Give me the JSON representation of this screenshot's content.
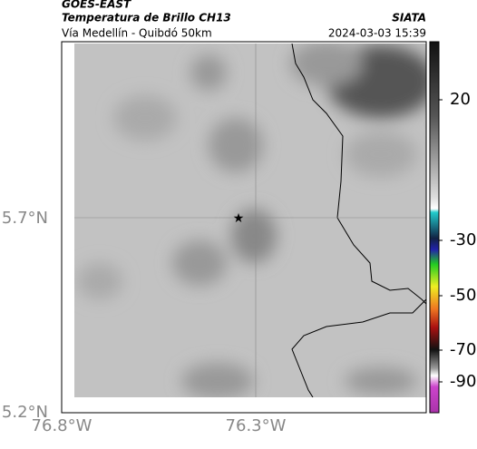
{
  "header": {
    "title": "GOES-EAST",
    "subtitle": "Temperatura de Brillo CH13",
    "source": "SIATA",
    "region": "Vía Medellín - Quibdó 50km",
    "datetime": "2024-03-03 15:39"
  },
  "axes": {
    "x_labels": [
      "76.8°W",
      "76.3°W"
    ],
    "y_labels": [
      "5.7°N",
      "5.2°N"
    ]
  },
  "colorbar": {
    "ticks": [
      20,
      -30,
      -50,
      -70,
      -90
    ]
  }
}
